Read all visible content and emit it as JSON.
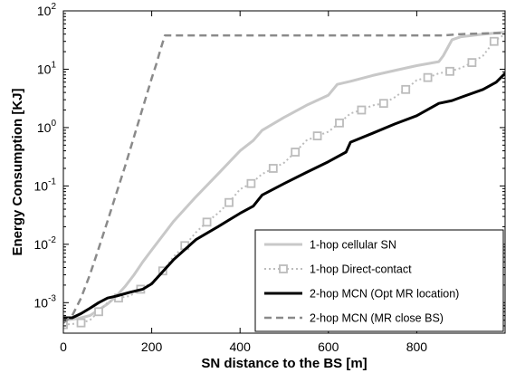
{
  "chart_data": {
    "type": "line",
    "xlabel": "SN distance to the BS [m]",
    "ylabel": "Energy Consumption [KJ]",
    "xlim": [
      0,
      1000
    ],
    "ylim": [
      0.0003,
      100
    ],
    "yscale": "log",
    "grid": false,
    "legend_position": "bottom-right",
    "x_ticks": [
      {
        "value": 0,
        "label": "0"
      },
      {
        "value": 200,
        "label": "200"
      },
      {
        "value": 400,
        "label": "400"
      },
      {
        "value": 600,
        "label": "600"
      },
      {
        "value": 800,
        "label": "800"
      }
    ],
    "y_ticks": [
      {
        "value": 0.001,
        "base": "10",
        "exp": "-3"
      },
      {
        "value": 0.01,
        "base": "10",
        "exp": "-2"
      },
      {
        "value": 0.1,
        "base": "10",
        "exp": "-1"
      },
      {
        "value": 1,
        "base": "10",
        "exp": "0"
      },
      {
        "value": 10,
        "base": "10",
        "exp": "1"
      },
      {
        "value": 100,
        "base": "10",
        "exp": "2"
      }
    ],
    "series": [
      {
        "name": "1-hop cellular SN",
        "color": "#c8c8c8",
        "dash": "solid",
        "marker": "none",
        "x": [
          0,
          20,
          40,
          60,
          80,
          100,
          120,
          140,
          160,
          180,
          200,
          250,
          300,
          350,
          400,
          430,
          450,
          500,
          550,
          600,
          620,
          650,
          700,
          750,
          800,
          850,
          860,
          880,
          900,
          950,
          1000
        ],
        "y": [
          0.0005,
          0.00052,
          0.00055,
          0.0006,
          0.00075,
          0.00095,
          0.0013,
          0.0019,
          0.003,
          0.005,
          0.008,
          0.025,
          0.065,
          0.16,
          0.4,
          0.6,
          0.9,
          1.5,
          2.4,
          3.6,
          5.5,
          6.2,
          7.8,
          9.5,
          11.5,
          13.5,
          17,
          32,
          36,
          40,
          43
        ]
      },
      {
        "name": "1-hop Direct-contact",
        "color": "#bcbcbc",
        "dash": "dotted",
        "marker": "square",
        "x": [
          0,
          20,
          40,
          60,
          80,
          100,
          125,
          150,
          175,
          200,
          225,
          250,
          275,
          300,
          325,
          350,
          375,
          400,
          425,
          450,
          475,
          500,
          525,
          550,
          575,
          600,
          625,
          650,
          675,
          700,
          725,
          750,
          775,
          800,
          825,
          850,
          875,
          900,
          925,
          950,
          975,
          1000
        ],
        "y": [
          0.00042,
          0.00043,
          0.00045,
          0.0005,
          0.0007,
          0.001,
          0.0012,
          0.0013,
          0.0017,
          0.0022,
          0.0035,
          0.0062,
          0.0095,
          0.016,
          0.024,
          0.034,
          0.052,
          0.088,
          0.11,
          0.16,
          0.2,
          0.25,
          0.38,
          0.6,
          0.72,
          0.85,
          1.2,
          1.75,
          2.0,
          2.4,
          2.6,
          3.3,
          4.5,
          6.5,
          7.2,
          8.5,
          9.2,
          10.5,
          13,
          17,
          30,
          40
        ]
      },
      {
        "name": "2-hop MCN (Opt MR location)",
        "color": "#000000",
        "dash": "solid",
        "marker": "none",
        "x": [
          0,
          20,
          40,
          60,
          80,
          100,
          120,
          150,
          180,
          200,
          250,
          300,
          350,
          400,
          430,
          450,
          500,
          550,
          600,
          640,
          650,
          700,
          750,
          800,
          850,
          880,
          900,
          950,
          980,
          1000
        ],
        "y": [
          0.00055,
          0.00055,
          0.00065,
          0.0008,
          0.001,
          0.0012,
          0.0013,
          0.0015,
          0.0017,
          0.0021,
          0.0055,
          0.012,
          0.02,
          0.034,
          0.045,
          0.07,
          0.11,
          0.17,
          0.26,
          0.38,
          0.56,
          0.8,
          1.15,
          1.6,
          2.6,
          2.9,
          3.3,
          4.5,
          6,
          8.5
        ]
      },
      {
        "name": "2-hop MCN (MR close BS)",
        "color": "#8a8a8a",
        "dash": "dashed",
        "marker": "none",
        "x": [
          0,
          20,
          40,
          60,
          80,
          100,
          120,
          140,
          160,
          180,
          200,
          210,
          220,
          230,
          260,
          400,
          600,
          800,
          860,
          900,
          1000
        ],
        "y": [
          0.00045,
          0.0006,
          0.0012,
          0.003,
          0.0085,
          0.025,
          0.075,
          0.22,
          0.7,
          2.2,
          7,
          12,
          22,
          38,
          38,
          38,
          38,
          38,
          38,
          40,
          42
        ]
      }
    ]
  }
}
